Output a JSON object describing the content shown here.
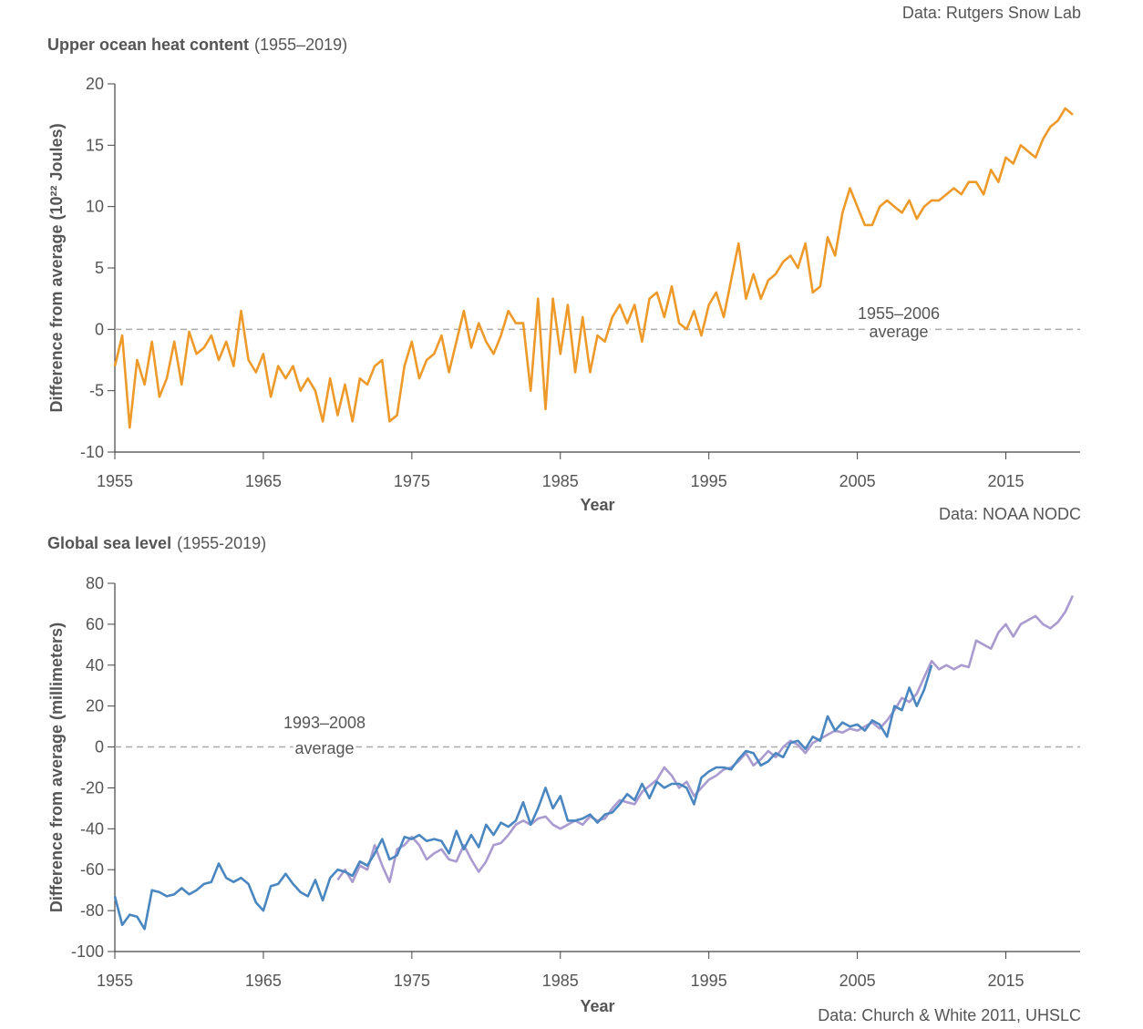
{
  "header_fragment": "Data: Rutgers Snow Lab",
  "chart_data": [
    {
      "type": "line",
      "title": "Upper ocean heat content",
      "subtitle": "(1955–2019)",
      "xlabel": "Year",
      "ylabel": "Difference from average (10²² Joules)",
      "source": "Data: NOAA NODC",
      "annotation": [
        "1955–2006",
        "average"
      ],
      "hline": 0,
      "xlim": [
        1955,
        2020
      ],
      "xticks": [
        1955,
        1965,
        1975,
        1985,
        1995,
        2005,
        2015
      ],
      "ylim": [
        -10,
        20
      ],
      "yticks": [
        -10,
        -5,
        0,
        5,
        10,
        15,
        20
      ],
      "x": [
        1955,
        1955.5,
        1956,
        1956.5,
        1957,
        1957.5,
        1958,
        1958.5,
        1959,
        1959.5,
        1960,
        1960.5,
        1961,
        1961.5,
        1962,
        1962.5,
        1963,
        1963.5,
        1964,
        1964.5,
        1965,
        1965.5,
        1966,
        1966.5,
        1967,
        1967.5,
        1968,
        1968.5,
        1969,
        1969.5,
        1970,
        1970.5,
        1971,
        1971.5,
        1972,
        1972.5,
        1973,
        1973.5,
        1974,
        1974.5,
        1975,
        1975.5,
        1976,
        1976.5,
        1977,
        1977.5,
        1978,
        1978.5,
        1979,
        1979.5,
        1980,
        1980.5,
        1981,
        1981.5,
        1982,
        1982.5,
        1983,
        1983.5,
        1984,
        1984.5,
        1985,
        1985.5,
        1986,
        1986.5,
        1987,
        1987.5,
        1988,
        1988.5,
        1989,
        1989.5,
        1990,
        1990.5,
        1991,
        1991.5,
        1992,
        1992.5,
        1993,
        1993.5,
        1994,
        1994.5,
        1995,
        1995.5,
        1996,
        1996.5,
        1997,
        1997.5,
        1998,
        1998.5,
        1999,
        1999.5,
        2000,
        2000.5,
        2001,
        2001.5,
        2002,
        2002.5,
        2003,
        2003.5,
        2004,
        2004.5,
        2005,
        2005.5,
        2006,
        2006.5,
        2007,
        2007.5,
        2008,
        2008.5,
        2009,
        2009.5,
        2010,
        2010.5,
        2011,
        2011.5,
        2012,
        2012.5,
        2013,
        2013.5,
        2014,
        2014.5,
        2015,
        2015.5,
        2016,
        2016.5,
        2017,
        2017.5,
        2018,
        2018.5,
        2019,
        2019.5
      ],
      "series": [
        {
          "color": "#ee9a2a",
          "values": [
            -3,
            -0.5,
            -8,
            -2.5,
            -4.5,
            -1,
            -5.5,
            -4,
            -1,
            -4.5,
            -0.2,
            -2,
            -1.5,
            -0.5,
            -2.5,
            -1,
            -3,
            1.5,
            -2.5,
            -3.5,
            -2,
            -5.5,
            -3,
            -4,
            -3,
            -5,
            -4,
            -5,
            -7.5,
            -4,
            -7,
            -4.5,
            -7.5,
            -4,
            -4.5,
            -3,
            -2.5,
            -7.5,
            -7,
            -3,
            -1,
            -4,
            -2.5,
            -2,
            -0.5,
            -3.5,
            -1,
            1.5,
            -1.5,
            0.5,
            -1,
            -2,
            -0.5,
            1.5,
            0.5,
            0.5,
            -5,
            2.5,
            -6.5,
            2.5,
            -2,
            2,
            -3.5,
            1,
            -3.5,
            -0.5,
            -1,
            1,
            2,
            0.5,
            2,
            -1,
            2.5,
            3,
            1,
            3.5,
            0.5,
            0,
            1.5,
            -0.5,
            2,
            3,
            1,
            4,
            7,
            2.5,
            4.5,
            2.5,
            4,
            4.5,
            5.5,
            6,
            5,
            7,
            3,
            3.5,
            7.5,
            6,
            9.5,
            11.5,
            10,
            8.5,
            8.5,
            10,
            10.5,
            10,
            9.5,
            10.5,
            9,
            10,
            10.5,
            10.5,
            11,
            11.5,
            11,
            12,
            12,
            11,
            13,
            12,
            14,
            13.5,
            15,
            14.5,
            14,
            15.5,
            16.5,
            17,
            18,
            17.5
          ]
        }
      ]
    },
    {
      "type": "line",
      "title": "Global sea level",
      "subtitle": "(1955-2019)",
      "xlabel": "Year",
      "ylabel": "Difference from average (millimeters)",
      "source": "Data: Church & White 2011, UHSLC",
      "annotation": [
        "1993–2008",
        "average"
      ],
      "hline": 0,
      "xlim": [
        1955,
        2020
      ],
      "xticks": [
        1955,
        1965,
        1975,
        1985,
        1995,
        2005,
        2015
      ],
      "ylim": [
        -100,
        80
      ],
      "yticks": [
        -100,
        -80,
        -60,
        -40,
        -20,
        0,
        20,
        40,
        60,
        80
      ],
      "x": [
        1955,
        1955.5,
        1956,
        1956.5,
        1957,
        1957.5,
        1958,
        1958.5,
        1959,
        1959.5,
        1960,
        1960.5,
        1961,
        1961.5,
        1962,
        1962.5,
        1963,
        1963.5,
        1964,
        1964.5,
        1965,
        1965.5,
        1966,
        1966.5,
        1967,
        1967.5,
        1968,
        1968.5,
        1969,
        1969.5,
        1970,
        1970.5,
        1971,
        1971.5,
        1972,
        1972.5,
        1973,
        1973.5,
        1974,
        1974.5,
        1975,
        1975.5,
        1976,
        1976.5,
        1977,
        1977.5,
        1978,
        1978.5,
        1979,
        1979.5,
        1980,
        1980.5,
        1981,
        1981.5,
        1982,
        1982.5,
        1983,
        1983.5,
        1984,
        1984.5,
        1985,
        1985.5,
        1986,
        1986.5,
        1987,
        1987.5,
        1988,
        1988.5,
        1989,
        1989.5,
        1990,
        1990.5,
        1991,
        1991.5,
        1992,
        1992.5,
        1993,
        1993.5,
        1994,
        1994.5,
        1995,
        1995.5,
        1996,
        1996.5,
        1997,
        1997.5,
        1998,
        1998.5,
        1999,
        1999.5,
        2000,
        2000.5,
        2001,
        2001.5,
        2002,
        2002.5,
        2003,
        2003.5,
        2004,
        2004.5,
        2005,
        2005.5,
        2006,
        2006.5,
        2007,
        2007.5,
        2008,
        2008.5,
        2009,
        2009.5,
        2010,
        2010.5,
        2011,
        2011.5,
        2012,
        2012.5,
        2013,
        2013.5,
        2014,
        2014.5,
        2015,
        2015.5,
        2016,
        2016.5,
        2017,
        2017.5,
        2018,
        2018.5,
        2019,
        2019.5
      ],
      "series": [
        {
          "color": "#a99bd0",
          "values": [
            null,
            null,
            null,
            null,
            null,
            null,
            null,
            null,
            null,
            null,
            null,
            null,
            null,
            null,
            null,
            null,
            null,
            null,
            null,
            null,
            null,
            null,
            null,
            null,
            null,
            null,
            null,
            null,
            null,
            null,
            -65,
            -60,
            -66,
            -58,
            -60,
            -48,
            -58,
            -66,
            -50,
            -48,
            -44,
            -48,
            -55,
            -52,
            -50,
            -55,
            -56,
            -48,
            -55,
            -61,
            -56,
            -48,
            -47,
            -43,
            -38,
            -36,
            -38,
            -35,
            -34,
            -38,
            -40,
            -38,
            -36,
            -38,
            -34,
            -36,
            -35,
            -30,
            -26,
            -27,
            -28,
            -22,
            -19,
            -16,
            -10,
            -14,
            -20,
            -17,
            -24,
            -20,
            -16,
            -14,
            -11,
            -10,
            -7,
            -3,
            -9,
            -6,
            -2,
            -5,
            0,
            3,
            1,
            -3,
            2,
            4,
            6,
            8,
            7,
            9,
            8,
            10,
            12,
            9,
            13,
            18,
            24,
            22,
            26,
            34,
            42,
            38,
            40,
            38,
            40,
            39,
            52,
            50,
            48,
            56,
            60,
            54,
            60,
            62,
            64,
            60,
            58,
            61,
            66,
            74
          ]
        },
        {
          "color": "#4a86c0",
          "values": [
            -73,
            -87,
            -82,
            -83,
            -89,
            -70,
            -71,
            -73,
            -72,
            -69,
            -72,
            -70,
            -67,
            -66,
            -57,
            -64,
            -66,
            -64,
            -67,
            -76,
            -80,
            -68,
            -67,
            -62,
            -67,
            -71,
            -73,
            -65,
            -75,
            -64,
            -60,
            -61,
            -63,
            -56,
            -58,
            -52,
            -45,
            -55,
            -53,
            -44,
            -45,
            -43,
            -46,
            -45,
            -46,
            -52,
            -41,
            -50,
            -43,
            -49,
            -38,
            -43,
            -37,
            -39,
            -36,
            -27,
            -38,
            -30,
            -20,
            -30,
            -24,
            -36,
            -36,
            -35,
            -33,
            -37,
            -33,
            -32,
            -28,
            -23,
            -26,
            -18,
            -25,
            -17,
            -20,
            -18,
            -18,
            -20,
            -28,
            -15,
            -12,
            -10,
            -10,
            -11,
            -6,
            -2,
            -3,
            -9,
            -7,
            -3,
            -5,
            2,
            3,
            -1,
            5,
            3,
            15,
            8,
            12,
            10,
            11,
            8,
            13,
            11,
            5,
            20,
            18,
            29,
            20,
            28,
            40,
            null,
            null,
            null,
            null,
            null,
            null,
            null,
            null,
            null,
            null,
            null,
            null,
            null,
            null,
            null,
            null,
            null,
            null,
            null
          ]
        }
      ]
    }
  ]
}
